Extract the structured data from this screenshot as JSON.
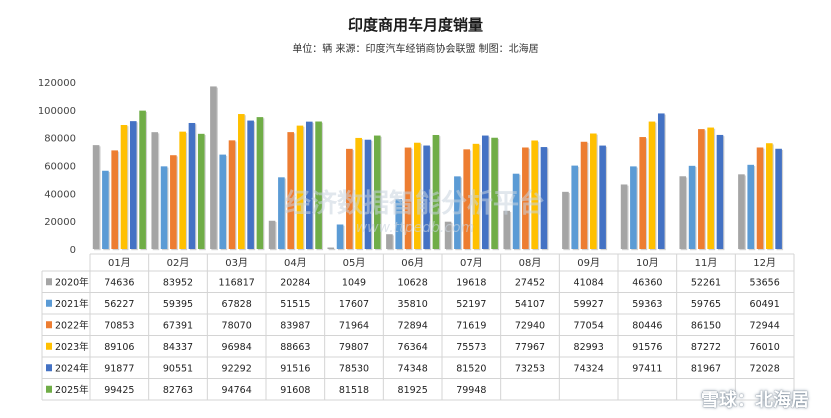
{
  "chart_data": {
    "type": "bar",
    "title": "印度商用车月度销量",
    "subtitle": "单位：辆 来源：印度汽车经销商协会联盟 制图：北海居",
    "categories": [
      "01月",
      "02月",
      "03月",
      "04月",
      "05月",
      "06月",
      "07月",
      "08月",
      "09月",
      "10月",
      "11月",
      "12月"
    ],
    "ylim": [
      0,
      120000
    ],
    "yticks": [
      "0",
      "20000",
      "40000",
      "60000",
      "80000",
      "100000",
      "120000"
    ],
    "grid": false,
    "legend": "table-left",
    "series": [
      {
        "name": "2020年",
        "color": "#a5a5a5",
        "values": [
          74636,
          83952,
          116817,
          20284,
          1049,
          10628,
          19618,
          27452,
          41084,
          46360,
          52261,
          53656
        ]
      },
      {
        "name": "2021年",
        "color": "#5b9bd5",
        "values": [
          56227,
          59395,
          67828,
          51515,
          17607,
          35810,
          52197,
          54107,
          59927,
          59363,
          59765,
          60491
        ]
      },
      {
        "name": "2022年",
        "color": "#ed7d31",
        "values": [
          70853,
          67391,
          78070,
          83987,
          71964,
          72894,
          71619,
          72940,
          77054,
          80446,
          86150,
          72944
        ]
      },
      {
        "name": "2023年",
        "color": "#ffc000",
        "values": [
          89106,
          84337,
          96984,
          88663,
          79807,
          76364,
          75573,
          77967,
          82993,
          91576,
          87272,
          76010
        ]
      },
      {
        "name": "2024年",
        "color": "#4472c4",
        "values": [
          91877,
          90551,
          92292,
          91516,
          78530,
          74348,
          81520,
          73253,
          74324,
          97411,
          81967,
          72028
        ]
      },
      {
        "name": "2025年",
        "color": "#70ad47",
        "values": [
          99425,
          82763,
          94764,
          91608,
          81518,
          81925,
          79948,
          null,
          null,
          null,
          null,
          null
        ]
      }
    ]
  },
  "watermark": {
    "center_text": "经济数据智能分析平台",
    "center_url": "www.ttpedb.com",
    "bottom_text": "雪球：北海居"
  }
}
